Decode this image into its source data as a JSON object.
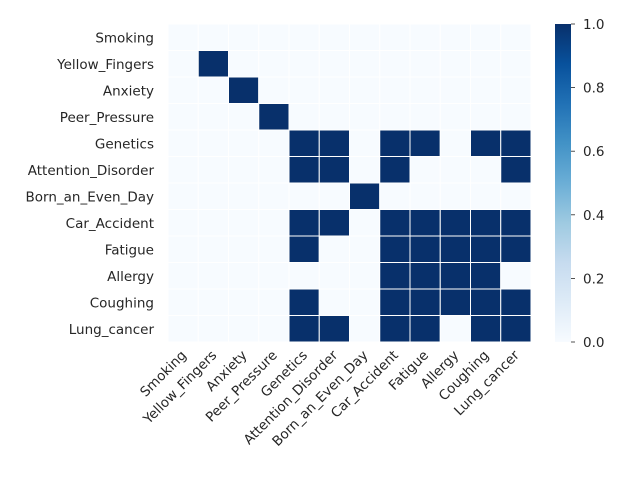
{
  "chart_data": {
    "type": "heatmap",
    "title": "",
    "xlabel": "",
    "ylabel": "",
    "row_labels": [
      "Smoking",
      "Yellow_Fingers",
      "Anxiety",
      "Peer_Pressure",
      "Genetics",
      "Attention_Disorder",
      "Born_an_Even_Day",
      "Car_Accident",
      "Fatigue",
      "Allergy",
      "Coughing",
      "Lung_cancer"
    ],
    "col_labels": [
      "Smoking",
      "Yellow_Fingers",
      "Anxiety",
      "Peer_Pressure",
      "Genetics",
      "Attention_Disorder",
      "Born_an_Even_Day",
      "Car_Accident",
      "Fatigue",
      "Allergy",
      "Coughing",
      "Lung_cancer"
    ],
    "values": [
      [
        0,
        0,
        0,
        0,
        0,
        0,
        0,
        0,
        0,
        0,
        0,
        0
      ],
      [
        0,
        1,
        0,
        0,
        0,
        0,
        0,
        0,
        0,
        0,
        0,
        0
      ],
      [
        0,
        0,
        1,
        0,
        0,
        0,
        0,
        0,
        0,
        0,
        0,
        0
      ],
      [
        0,
        0,
        0,
        1,
        0,
        0,
        0,
        0,
        0,
        0,
        0,
        0
      ],
      [
        0,
        0,
        0,
        0,
        1,
        1,
        0,
        1,
        1,
        0,
        1,
        1
      ],
      [
        0,
        0,
        0,
        0,
        1,
        1,
        0,
        1,
        0,
        0,
        0,
        1
      ],
      [
        0,
        0,
        0,
        0,
        0,
        0,
        1,
        0,
        0,
        0,
        0,
        0
      ],
      [
        0,
        0,
        0,
        0,
        1,
        1,
        0,
        1,
        1,
        1,
        1,
        1
      ],
      [
        0,
        0,
        0,
        0,
        1,
        0,
        0,
        1,
        1,
        1,
        1,
        1
      ],
      [
        0,
        0,
        0,
        0,
        0,
        0,
        0,
        1,
        1,
        1,
        1,
        0
      ],
      [
        0,
        0,
        0,
        0,
        1,
        0,
        0,
        1,
        1,
        1,
        1,
        1
      ],
      [
        0,
        0,
        0,
        0,
        1,
        1,
        0,
        1,
        1,
        0,
        1,
        1
      ]
    ],
    "colorbar": {
      "min": 0.0,
      "max": 1.0,
      "ticks": [
        "0.0",
        "0.2",
        "0.4",
        "0.6",
        "0.8",
        "1.0"
      ],
      "colormap": "Blues",
      "low_color": "#f7fbff",
      "high_color": "#08306b"
    },
    "grid": true,
    "cell_border_color": "#ffffff"
  }
}
